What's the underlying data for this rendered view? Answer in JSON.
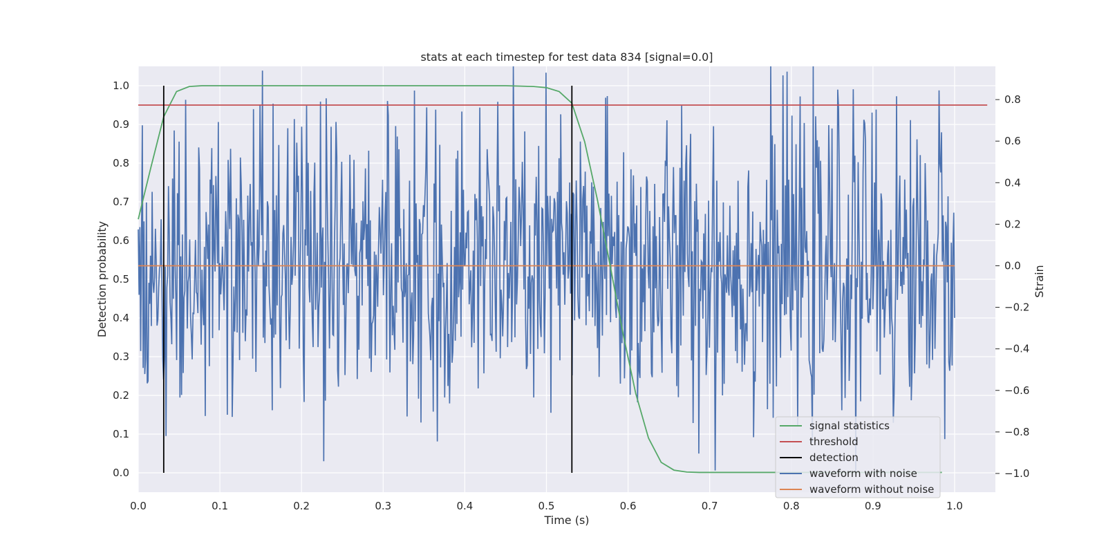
{
  "chart_data": {
    "type": "line",
    "title": "stats at each timestep for test data 834 [signal=0.0]",
    "xlabel": "Time (s)",
    "ylabel": "Detection probability",
    "ylabel_right": "Strain",
    "xlim": [
      0.0,
      1.05
    ],
    "ylim": [
      -0.05,
      1.05
    ],
    "ylim_right": [
      -1.09,
      0.96
    ],
    "xticks": [
      0.0,
      0.1,
      0.2,
      0.3,
      0.4,
      0.5,
      0.6,
      0.7,
      0.8,
      0.9,
      1.0
    ],
    "xtick_labels": [
      "0.0",
      "0.1",
      "0.2",
      "0.3",
      "0.4",
      "0.5",
      "0.6",
      "0.7",
      "0.8",
      "0.9",
      "1.0"
    ],
    "yticks": [
      0.0,
      0.1,
      0.2,
      0.3,
      0.4,
      0.5,
      0.6,
      0.7,
      0.8,
      0.9,
      1.0
    ],
    "ytick_labels": [
      "0.0",
      "0.1",
      "0.2",
      "0.3",
      "0.4",
      "0.5",
      "0.6",
      "0.7",
      "0.8",
      "0.9",
      "1.0"
    ],
    "yticks_right": [
      -1.0,
      -0.8,
      -0.6,
      -0.4,
      -0.2,
      0.0,
      0.2,
      0.4,
      0.6,
      0.8
    ],
    "ytick_labels_right": [
      "−1.0",
      "−0.8",
      "−0.6",
      "−0.4",
      "−0.2",
      "0.0",
      "0.2",
      "0.4",
      "0.6",
      "0.8"
    ],
    "grid": true,
    "legend_position": "lower-right",
    "colors": {
      "background": "#eaeaf2",
      "grid": "#ffffff",
      "signal": "#55a868",
      "threshold": "#c44e52",
      "detection": "#000000",
      "noise": "#4c72b0",
      "clean": "#dd8452"
    },
    "series": [
      {
        "name": "signal statistics",
        "axis": "left",
        "x": [
          0.0,
          0.0156,
          0.0312,
          0.0469,
          0.0625,
          0.0781,
          0.1,
          0.2,
          0.3,
          0.4,
          0.45,
          0.4844,
          0.5,
          0.5156,
          0.5312,
          0.5469,
          0.5625,
          0.5781,
          0.5938,
          0.6094,
          0.625,
          0.6406,
          0.6562,
          0.6719,
          0.6875,
          0.75,
          0.85,
          0.95,
          0.9844
        ],
        "y": [
          0.655,
          0.79,
          0.92,
          0.985,
          0.998,
          1.0,
          1.0,
          1.0,
          1.0,
          1.0,
          1.0,
          0.998,
          0.995,
          0.985,
          0.955,
          0.855,
          0.705,
          0.535,
          0.36,
          0.205,
          0.09,
          0.027,
          0.007,
          0.002,
          0.001,
          0.001,
          0.001,
          0.001,
          0.001
        ]
      },
      {
        "name": "threshold",
        "axis": "left",
        "x": [
          0.0,
          1.04
        ],
        "y": [
          0.95,
          0.95
        ]
      },
      {
        "name": "detection",
        "axis": "left",
        "x": [
          0.0312,
          0.5312
        ],
        "y": [
          1.0,
          1.0
        ]
      },
      {
        "name": "waveform with noise",
        "axis": "right",
        "x_start": 0.0,
        "x_end": 1.0,
        "n_points": 1000,
        "y_range": [
          -1.0,
          0.96
        ]
      },
      {
        "name": "waveform without noise",
        "axis": "right",
        "x": [
          0.0,
          1.0
        ],
        "y": [
          0.0,
          0.0
        ]
      }
    ]
  }
}
